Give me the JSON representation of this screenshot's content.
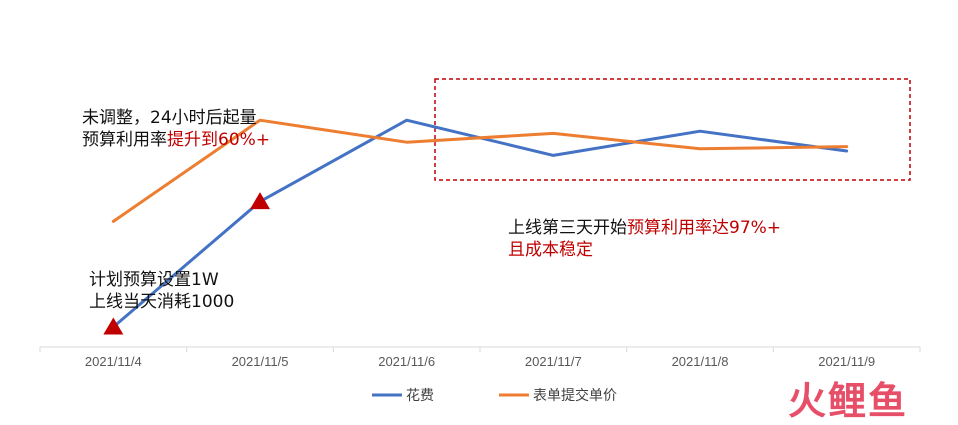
{
  "chart_data": {
    "type": "line",
    "categories": [
      "2021/11/4",
      "2021/11/5",
      "2021/11/6",
      "2021/11/7",
      "2021/11/8",
      "2021/11/9"
    ],
    "series": [
      {
        "name": "花费",
        "color": "#4472c4",
        "values": [
          0,
          0.57,
          0.94,
          0.78,
          0.89,
          0.8
        ]
      },
      {
        "name": "表单提交单价",
        "color": "#ed7d31",
        "values": [
          0.48,
          0.94,
          0.84,
          0.88,
          0.81,
          0.82
        ]
      }
    ],
    "ylim": [
      0,
      1
    ],
    "markers": [
      {
        "category": "2021/11/4",
        "value": 0,
        "color": "#c00000",
        "shape": "triangle"
      },
      {
        "category": "2021/11/5",
        "value": 0.57,
        "color": "#c00000",
        "shape": "triangle"
      }
    ],
    "legend_position": "bottom",
    "grid": false
  },
  "annotations": {
    "a1_line1": "未调整，24小时后起量",
    "a1_line2_prefix": "预算利用率",
    "a1_line2_red": "提升到60%+",
    "a2_line1_prefix": "上线第三天开始",
    "a2_line1_red": "预算利用率达97%+",
    "a2_line2_red": "且成本稳定",
    "a3_line1": "计划预算设置1W",
    "a3_line2": "上线当天消耗1000"
  },
  "watermark": "火鲤鱼"
}
